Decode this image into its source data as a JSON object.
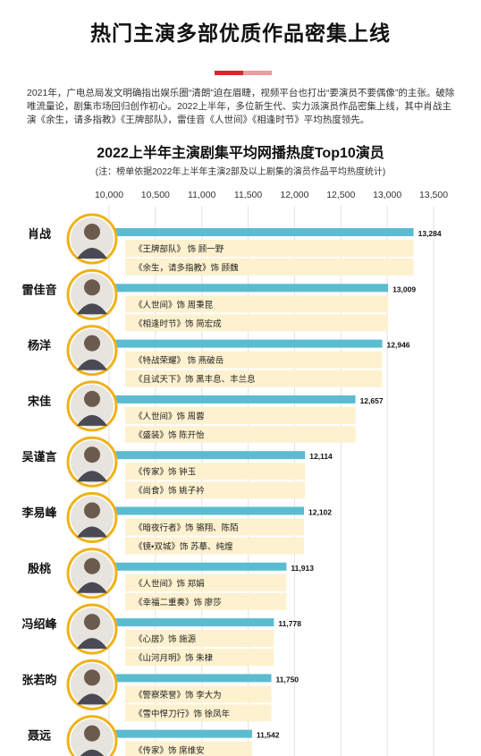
{
  "header": {
    "title": "热门主演多部优质作品密集上线",
    "intro": "2021年，广电总局发文明确指出娱乐圈“清朗”迫在眉睫，视频平台也打出“要演员不要偶像”的主张。破除唯流量论，剧集市场回归创作初心。2022上半年，多位新生代、实力派演员作品密集上线，其中肖战主演《余生，请多指教》《王牌部队》，雷佳音《人世间》《相逢时节》平均热度领先。"
  },
  "colors": {
    "bar": "#5bbcd0",
    "role_fill": "#fdf1cf",
    "avatar_ring": "#f0b21a",
    "accent_red": "#d8262b",
    "accent_pink": "#ee9aa0",
    "gridline": "#e2e2e2"
  },
  "chart_data": {
    "type": "bar",
    "orientation": "horizontal",
    "title": "2022上半年主演剧集平均网播热度Top10演员",
    "subtitle": "(注：榜单依据2022年上半年主演2部及以上剧集的演员作品平均热度统计)",
    "xlim": [
      10000,
      13500
    ],
    "x_ticks": [
      10000,
      10500,
      11000,
      11500,
      12000,
      12500,
      13000,
      13500
    ],
    "x_tick_labels": [
      "10,000",
      "10,500",
      "11,000",
      "11,500",
      "12,000",
      "12,500",
      "13,000",
      "13,500"
    ],
    "grid": true,
    "categories": [
      "肖战",
      "雷佳音",
      "杨洋",
      "宋佳",
      "吴谨言",
      "李易峰",
      "殷桃",
      "冯绍峰",
      "张若昀",
      "聂远"
    ],
    "values": [
      13284,
      13009,
      12946,
      12657,
      12114,
      12102,
      11913,
      11778,
      11750,
      11542
    ],
    "value_labels": [
      "13,284",
      "13,009",
      "12,946",
      "12,657",
      "12,114",
      "12,102",
      "11,913",
      "11,778",
      "11,750",
      "11,542"
    ],
    "roles": [
      [
        "《王牌部队》 饰 顾一野",
        "《余生，请多指教》饰 顾魏"
      ],
      [
        "《人世间》饰 周秉昆",
        "《相逢时节》饰 简宏成"
      ],
      [
        "《特战荣耀》 饰 燕破岳",
        "《且试天下》饰  黑丰息、丰兰息"
      ],
      [
        "《人世间》饰 周蓉",
        "《盛装》饰 陈开怡"
      ],
      [
        "《传家》饰 钟玉",
        "《尚食》饰 姚子衿"
      ],
      [
        "《暗夜行者》饰 骆翔、陈陌",
        "《镜•双城》饰 苏摹、纯煌"
      ],
      [
        "《人世间》饰 郑娟",
        "《幸福二重奏》饰 廖莎"
      ],
      [
        "《心居》饰 施源",
        "《山河月明》饰 朱棣"
      ],
      [
        "《警察荣誉》饰 李大为",
        "《雪中悍刀行》饰 徐凤年"
      ],
      [
        "《传家》饰 席维安",
        ""
      ]
    ],
    "avatar_icons": [
      "person-avatar-icon",
      "person-avatar-icon",
      "person-avatar-icon",
      "person-avatar-icon",
      "person-avatar-icon",
      "person-avatar-icon",
      "person-avatar-icon",
      "person-avatar-icon",
      "person-avatar-icon",
      "person-avatar-icon"
    ]
  }
}
